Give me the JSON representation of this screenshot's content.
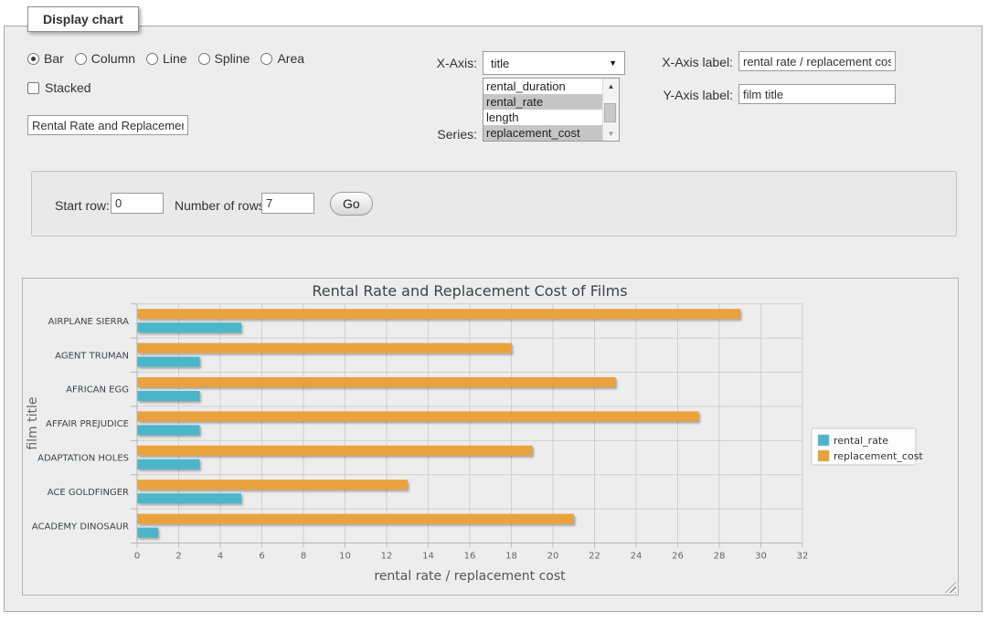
{
  "panel": {
    "legend": "Display chart",
    "chart_types": [
      "Bar",
      "Column",
      "Line",
      "Spline",
      "Area"
    ],
    "selected_chart_type": "Bar",
    "stacked_label": "Stacked",
    "stacked_checked": false,
    "title_input_value": "Rental Rate and Replacement Cost of Films",
    "xaxis_label_text": "X-Axis:",
    "xaxis_selected": "title",
    "series_label_text": "Series:",
    "series_options": [
      {
        "label": "rental_duration",
        "selected": false
      },
      {
        "label": "rental_rate",
        "selected": true
      },
      {
        "label": "length",
        "selected": false
      },
      {
        "label": "replacement_cost",
        "selected": true
      }
    ],
    "xaxis_field_label": "X-Axis label:",
    "xaxis_field_value": "rental rate / replacement cost",
    "yaxis_field_label": "Y-Axis label:",
    "yaxis_field_value": "film title"
  },
  "rows_panel": {
    "start_row_label": "Start row:",
    "start_row_value": "0",
    "num_rows_label": "Number of rows:",
    "num_rows_value": "7",
    "go_label": "Go"
  },
  "chart_data": {
    "type": "bar",
    "title": "Rental Rate and Replacement Cost of Films",
    "xlabel": "rental rate / replacement cost",
    "ylabel": "film title",
    "categories": [
      "AIRPLANE SIERRA",
      "AGENT TRUMAN",
      "AFRICAN EGG",
      "AFFAIR PREJUDICE",
      "ADAPTATION HOLES",
      "ACE GOLDFINGER",
      "ACADEMY DINOSAUR"
    ],
    "series": [
      {
        "name": "rental_rate",
        "color": "#4BB6C9",
        "values": [
          4.99,
          2.99,
          2.99,
          2.99,
          2.99,
          4.99,
          0.99
        ]
      },
      {
        "name": "replacement_cost",
        "color": "#E9A23C",
        "values": [
          28.99,
          17.99,
          22.99,
          26.99,
          18.99,
          12.99,
          20.99
        ]
      }
    ],
    "xlim": [
      0,
      32
    ],
    "xtick_step": 2,
    "grid": true,
    "legend_position": "right",
    "colors": {
      "grid": "#d0d0d0",
      "axis": "#b5b5b5",
      "text": "#3e4349",
      "tick_text": "#666666"
    }
  }
}
